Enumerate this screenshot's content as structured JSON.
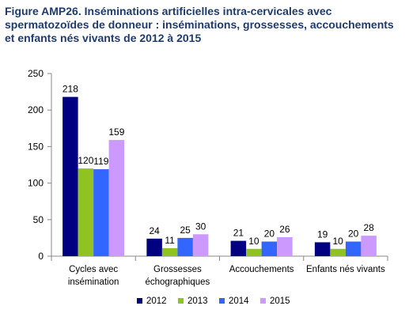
{
  "figure": {
    "prefix": "Figure AMP26.",
    "title": "Inséminations artificielles intra-cervicales avec spermatozoïdes de donneur : inséminations, grossesses, accouchements et enfants nés vivants de 2012 à 2015"
  },
  "chart_data": {
    "type": "bar",
    "title": "Inséminations artificielles intra-cervicales avec spermatozoïdes de donneur : inséminations, grossesses, accouchements et enfants nés vivants de 2012 à 2015",
    "categories": [
      [
        "Cycles avec",
        "insémination"
      ],
      [
        "Grossesses",
        "échographiques"
      ],
      [
        "Accouchements"
      ],
      [
        "Enfants nés vivants"
      ]
    ],
    "series": [
      {
        "name": "2012",
        "color": "#000080",
        "values": [
          218,
          24,
          21,
          19
        ]
      },
      {
        "name": "2013",
        "color": "#8fc31f",
        "values": [
          120,
          11,
          10,
          10
        ]
      },
      {
        "name": "2014",
        "color": "#3366ff",
        "values": [
          119,
          25,
          20,
          20
        ]
      },
      {
        "name": "2015",
        "color": "#cc99ff",
        "values": [
          159,
          30,
          26,
          28
        ]
      }
    ],
    "yticks": [
      0,
      50,
      100,
      150,
      200,
      250
    ],
    "ylim": [
      0,
      250
    ],
    "grid": false,
    "legend_position": "bottom"
  }
}
